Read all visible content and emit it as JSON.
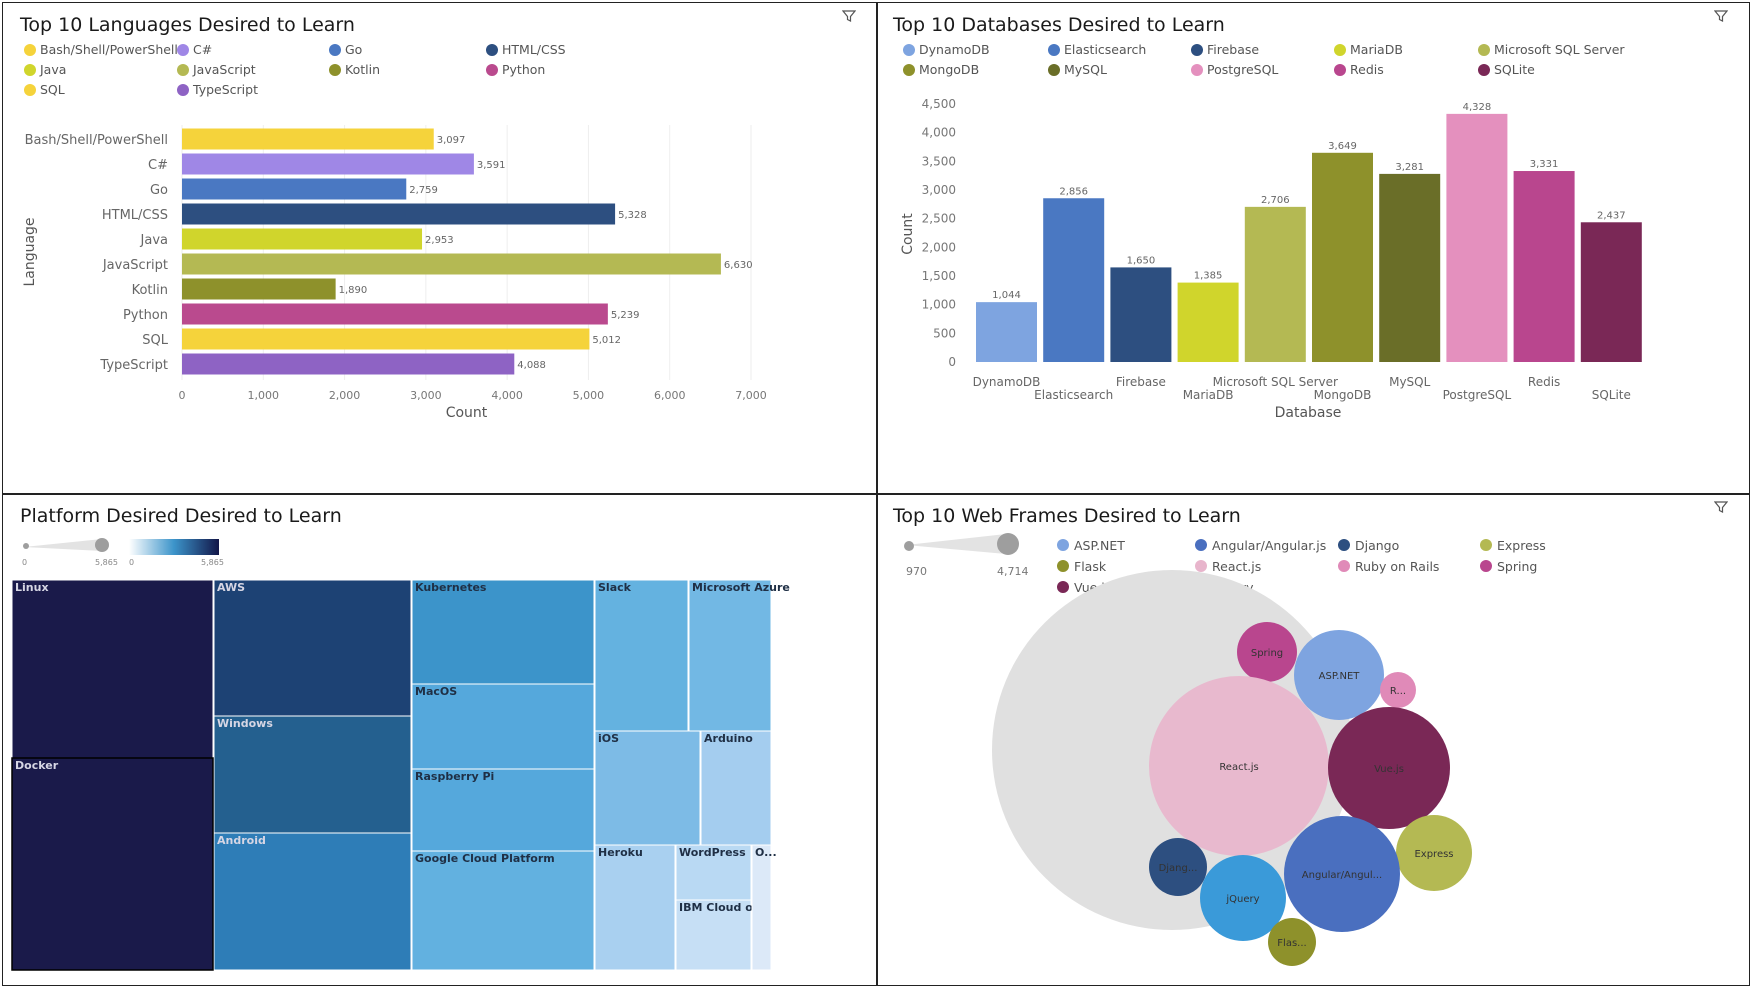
{
  "panels": {
    "languages": {
      "title": "Top 10 Languages Desired to Learn"
    },
    "databases": {
      "title": "Top 10 Databases Desired to Learn"
    },
    "platforms": {
      "title": "Platform Desired Desired to Learn"
    },
    "webframes": {
      "title": "Top 10 Web Frames Desired to Learn"
    }
  },
  "icons": {
    "filter": "filter-icon"
  },
  "chart_data": [
    {
      "id": "languages",
      "type": "bar",
      "orientation": "horizontal",
      "title": "Top 10 Languages Desired to Learn",
      "xlabel": "Count",
      "ylabel": "Language",
      "xlim": [
        0,
        7000
      ],
      "xticks": [
        "0",
        "1,000",
        "2,000",
        "3,000",
        "4,000",
        "5,000",
        "6,000",
        "7,000"
      ],
      "categories": [
        "Bash/Shell/PowerShell",
        "C#",
        "Go",
        "HTML/CSS",
        "Java",
        "JavaScript",
        "Kotlin",
        "Python",
        "SQL",
        "TypeScript"
      ],
      "values": [
        3097,
        3591,
        2759,
        5328,
        2953,
        6630,
        1890,
        5239,
        5012,
        4088
      ],
      "labels": [
        "3,097",
        "3,591",
        "2,759",
        "5,328",
        "2,953",
        "6,630",
        "1,890",
        "5,239",
        "5,012",
        "4,088"
      ],
      "colors": [
        "#f5d33b",
        "#9f87e6",
        "#4a78c2",
        "#2d4f80",
        "#d0d52c",
        "#b4b953",
        "#8e912b",
        "#ba4a8e",
        "#f5d33b",
        "#8e63c4"
      ],
      "legend": [
        "Bash/Shell/PowerShell",
        "C#",
        "Go",
        "HTML/CSS",
        "Java",
        "JavaScript",
        "Kotlin",
        "Python",
        "SQL",
        "TypeScript"
      ],
      "legend_position": "top-left",
      "grid": true
    },
    {
      "id": "databases",
      "type": "bar",
      "orientation": "vertical",
      "title": "Top 10 Databases Desired to Learn",
      "xlabel": "Database",
      "ylabel": "Count",
      "ylim": [
        0,
        4500
      ],
      "yticks": [
        "0",
        "500",
        "1,000",
        "1,500",
        "2,000",
        "2,500",
        "3,000",
        "3,500",
        "4,000",
        "4,500"
      ],
      "categories": [
        "DynamoDB",
        "Elasticsearch",
        "Firebase",
        "MariaDB",
        "Microsoft SQL Server",
        "MongoDB",
        "MySQL",
        "PostgreSQL",
        "Redis",
        "SQLite"
      ],
      "values": [
        1044,
        2856,
        1650,
        1385,
        2706,
        3649,
        3281,
        4328,
        3331,
        2437
      ],
      "labels": [
        "1,044",
        "2,856",
        "1,650",
        "1,385",
        "2,706",
        "3,649",
        "3,281",
        "4,328",
        "3,331",
        "2,437"
      ],
      "colors": [
        "#7ea4e0",
        "#4a78c2",
        "#2d4f80",
        "#d0d52c",
        "#b4b953",
        "#8e912b",
        "#6a6e28",
        "#e490be",
        "#b9468e",
        "#7a2856"
      ],
      "legend": [
        "DynamoDB",
        "Elasticsearch",
        "Firebase",
        "MariaDB",
        "Microsoft SQL Server",
        "MongoDB",
        "MySQL",
        "PostgreSQL",
        "Redis",
        "SQLite"
      ],
      "legend_position": "top-left",
      "grid": false
    },
    {
      "id": "platforms",
      "type": "treemap",
      "title": "Platform Desired Desired to Learn",
      "color_scale_labels": [
        "0",
        "5,865"
      ],
      "size_legend_labels": [
        "0",
        "5,865"
      ],
      "items": [
        {
          "name": "Linux",
          "color": "#1a1a4a"
        },
        {
          "name": "Docker",
          "color": "#1a1a4a"
        },
        {
          "name": "AWS",
          "color": "#1d4274"
        },
        {
          "name": "Windows",
          "color": "#24608f"
        },
        {
          "name": "Android",
          "color": "#2e7db7"
        },
        {
          "name": "Kubernetes",
          "color": "#3c94ca"
        },
        {
          "name": "MacOS",
          "color": "#55a8dc"
        },
        {
          "name": "Raspberry Pi",
          "color": "#55a8dc"
        },
        {
          "name": "Google Cloud Platform",
          "color": "#62b1e0"
        },
        {
          "name": "Slack",
          "color": "#64b2e0"
        },
        {
          "name": "Microsoft Azure",
          "color": "#72b8e4"
        },
        {
          "name": "iOS",
          "color": "#7dbbe6"
        },
        {
          "name": "Arduino",
          "color": "#a4cdef"
        },
        {
          "name": "Heroku",
          "color": "#a9d0f0"
        },
        {
          "name": "WordPress",
          "color": "#b9d9f3"
        },
        {
          "name": "IBM Cloud o...",
          "color": "#c6dff5"
        },
        {
          "name": "O...",
          "color": "#dce9f8"
        }
      ]
    },
    {
      "id": "webframes",
      "type": "bubble",
      "title": "Top 10 Web Frames Desired to Learn",
      "size_legend_labels": [
        "970",
        "4,714"
      ],
      "legend": [
        "ASP.NET",
        "Angular/Angular.js",
        "Django",
        "Express",
        "Flask",
        "React.js",
        "Ruby on Rails",
        "Spring",
        "Vue.js",
        "jQuery"
      ],
      "legend_colors": [
        "#7ea4e0",
        "#4a6fbf",
        "#2d4f80",
        "#b4b953",
        "#8e912b",
        "#e8b5cc",
        "#e08ab8",
        "#b9468e",
        "#7a2856",
        "#3a9ad9"
      ],
      "bubbles": [
        {
          "label": "Spring",
          "color": "#b9468e"
        },
        {
          "label": "ASP.NET",
          "color": "#7ea4e0"
        },
        {
          "label": "R...",
          "color": "#e08ab8"
        },
        {
          "label": "React.js",
          "color": "#e8b9ce"
        },
        {
          "label": "Vue.js",
          "color": "#7a2856"
        },
        {
          "label": "Express",
          "color": "#b4b953"
        },
        {
          "label": "Angular/Angul...",
          "color": "#4a6fbf"
        },
        {
          "label": "Djang...",
          "color": "#2d4f80"
        },
        {
          "label": "jQuery",
          "color": "#3a9ad9"
        },
        {
          "label": "Flas...",
          "color": "#8e912b"
        }
      ]
    }
  ]
}
